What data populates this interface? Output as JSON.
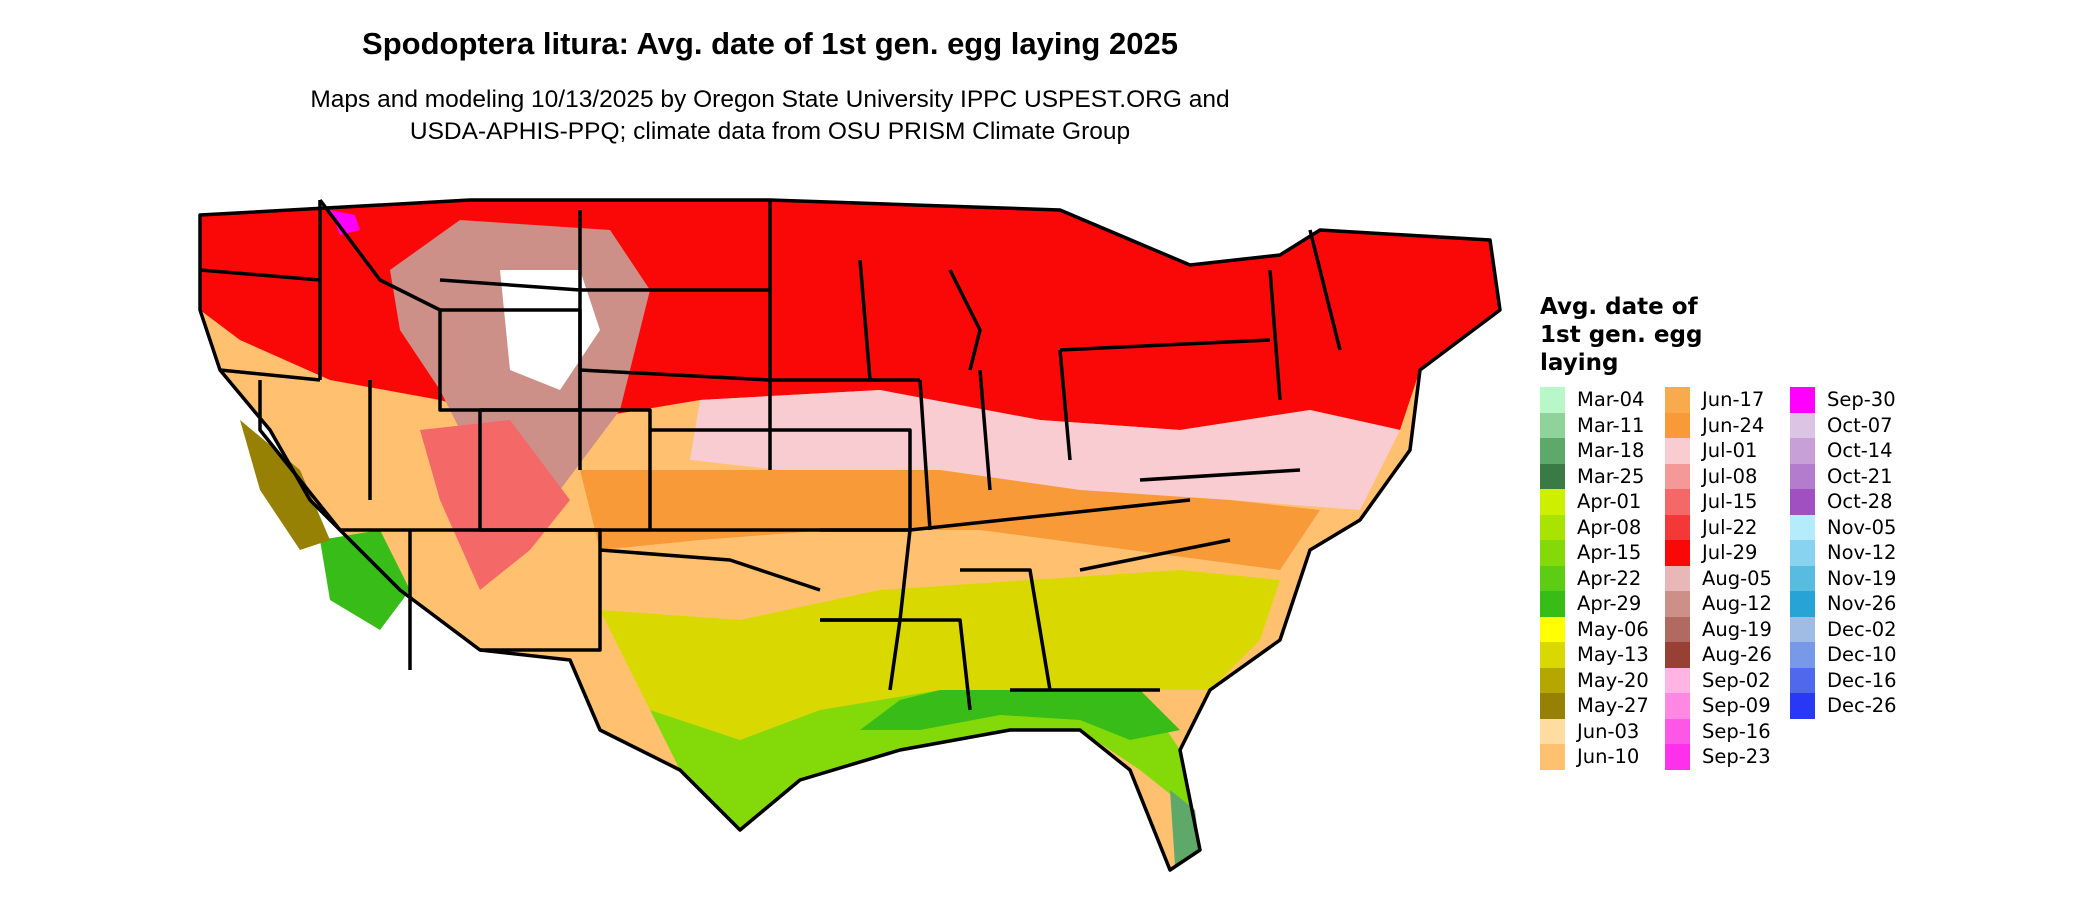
{
  "title": "Spodoptera litura: Avg. date of 1st gen. egg laying 2025",
  "subtitle_lines": [
    "Maps and modeling 10/13/2025 by Oregon State University IPPC USPEST.ORG and",
    "USDA-APHIS-PPQ; climate data from OSU PRISM Climate Group"
  ],
  "legend": {
    "title_lines": [
      "Avg. date of",
      "1st gen. egg",
      "laying"
    ],
    "columns": [
      [
        {
          "label": "Mar-04",
          "color": "#b8f7c8"
        },
        {
          "label": "Mar-11",
          "color": "#8fd39a"
        },
        {
          "label": "Mar-18",
          "color": "#5ea86a"
        },
        {
          "label": "Mar-25",
          "color": "#3a7a45"
        },
        {
          "label": "Apr-01",
          "color": "#ccf000"
        },
        {
          "label": "Apr-08",
          "color": "#a8e400"
        },
        {
          "label": "Apr-15",
          "color": "#84da08"
        },
        {
          "label": "Apr-22",
          "color": "#5ccc14"
        },
        {
          "label": "Apr-29",
          "color": "#38bc18"
        },
        {
          "label": "May-06",
          "color": "#ffff00"
        },
        {
          "label": "May-13",
          "color": "#d9d800"
        },
        {
          "label": "May-20",
          "color": "#b4a800"
        },
        {
          "label": "May-27",
          "color": "#978104"
        },
        {
          "label": "Jun-03",
          "color": "#ffdca0"
        },
        {
          "label": "Jun-10",
          "color": "#ffc070"
        }
      ],
      [
        {
          "label": "Jun-17",
          "color": "#f8aa4c"
        },
        {
          "label": "Jun-24",
          "color": "#f89a38"
        },
        {
          "label": "Jul-01",
          "color": "#f8ccd0"
        },
        {
          "label": "Jul-08",
          "color": "#f49898"
        },
        {
          "label": "Jul-15",
          "color": "#f46868"
        },
        {
          "label": "Jul-22",
          "color": "#f43838"
        },
        {
          "label": "Jul-29",
          "color": "#fa0808"
        },
        {
          "label": "Aug-05",
          "color": "#e8b8b8"
        },
        {
          "label": "Aug-12",
          "color": "#cc9088"
        },
        {
          "label": "Aug-19",
          "color": "#b06a60"
        },
        {
          "label": "Aug-26",
          "color": "#984034"
        },
        {
          "label": "Sep-02",
          "color": "#ffb4e4"
        },
        {
          "label": "Sep-09",
          "color": "#ff88e4"
        },
        {
          "label": "Sep-16",
          "color": "#ff58e8"
        },
        {
          "label": "Sep-23",
          "color": "#ff30ec"
        }
      ],
      [
        {
          "label": "Sep-30",
          "color": "#ff00ff"
        },
        {
          "label": "Oct-07",
          "color": "#dcc4e4"
        },
        {
          "label": "Oct-14",
          "color": "#c8a0d8"
        },
        {
          "label": "Oct-21",
          "color": "#b47ccc"
        },
        {
          "label": "Oct-28",
          "color": "#a050c0"
        },
        {
          "label": "Nov-05",
          "color": "#b4ecfc"
        },
        {
          "label": "Nov-12",
          "color": "#88d4f0"
        },
        {
          "label": "Nov-19",
          "color": "#58bce0"
        },
        {
          "label": "Nov-26",
          "color": "#28a4d4"
        },
        {
          "label": "Dec-02",
          "color": "#a0bce4"
        },
        {
          "label": "Dec-10",
          "color": "#7898e8"
        },
        {
          "label": "Dec-16",
          "color": "#5068ec"
        },
        {
          "label": "Dec-26",
          "color": "#2838f4"
        }
      ]
    ]
  },
  "map": {
    "outline_color": "#000000",
    "zone_colors": [
      "#fa0808",
      "#f46868",
      "#f8ccd0",
      "#cc9088",
      "#f89a38",
      "#ffc070",
      "#d9d800",
      "#84da08",
      "#38bc18",
      "#5ea86a",
      "#ff00ff"
    ]
  }
}
